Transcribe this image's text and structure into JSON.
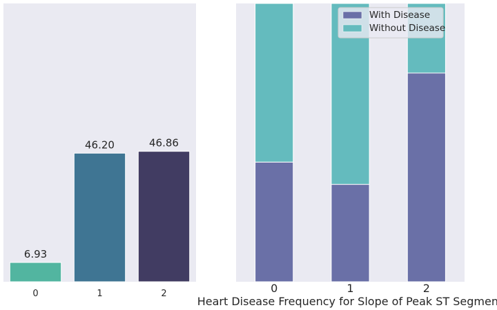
{
  "chart_data": [
    {
      "type": "bar",
      "categories": [
        "0",
        "1",
        "2"
      ],
      "values": [
        6.93,
        46.2,
        46.86
      ],
      "data_labels": [
        "6.93",
        "46.20",
        "46.86"
      ],
      "colors": [
        "#52b5a0",
        "#3f7593",
        "#413c62"
      ],
      "ylim": [
        0,
        100
      ],
      "grid": false,
      "background": "#eaeaf2"
    },
    {
      "type": "bar",
      "stacked": true,
      "normalized": true,
      "categories": [
        "0",
        "1",
        "2"
      ],
      "series": [
        {
          "name": "With Disease",
          "color": "#6a70a7",
          "values": [
            0.43,
            0.35,
            0.75
          ]
        },
        {
          "name": "Without Disease",
          "color": "#64bbbe",
          "values": [
            0.57,
            0.65,
            0.25
          ]
        }
      ],
      "ylim": [
        0,
        1
      ],
      "xlabel": "Heart Disease Frequency for Slope of Peak ST Segment",
      "legend": "top-right",
      "background": "#eaeaf2"
    }
  ]
}
